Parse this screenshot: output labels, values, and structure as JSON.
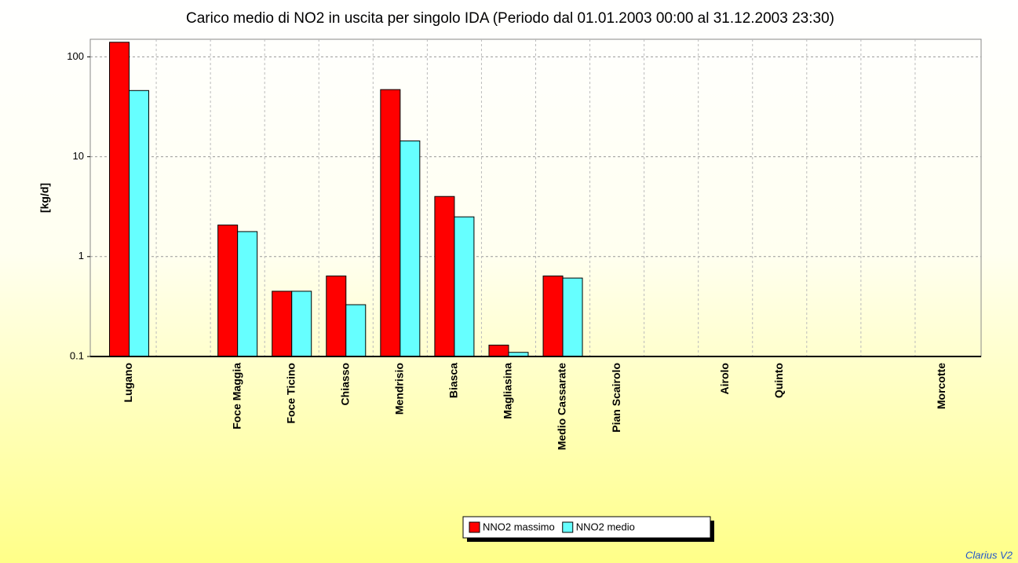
{
  "chart_data": {
    "type": "bar",
    "title": "Carico medio di NO2 in uscita per singolo IDA (Periodo dal 01.01.2003 00:00 al 31.12.2003 23:30)",
    "y_label": "[kg/d]",
    "footer": "Clarius V2",
    "categories": [
      "Lugano",
      null,
      "Foce Maggia",
      "Foce Ticino",
      "Chiasso",
      "Mendrisio",
      "Biasca",
      "Magliasina",
      "Medio Cassarate",
      "Pian Scairolo",
      null,
      "Airolo",
      "Quinto",
      null,
      null,
      "Morcotte"
    ],
    "series": [
      {
        "name": "NNO2 massimo",
        "color": "#ff0000",
        "values": [
          140,
          null,
          2.07,
          0.45,
          0.64,
          47,
          4.0,
          0.13,
          0.64,
          null,
          null,
          null,
          null,
          null,
          null,
          null
        ]
      },
      {
        "name": "NNO2 medio",
        "color": "#66ffff",
        "values": [
          46,
          null,
          1.78,
          0.45,
          0.33,
          14.4,
          2.5,
          0.11,
          0.61,
          null,
          null,
          null,
          null,
          null,
          null,
          null
        ]
      }
    ],
    "ylim": [
      0.1,
      150
    ],
    "yticks": [
      0.1,
      1,
      10,
      100
    ],
    "log_y": true,
    "grid": true,
    "legend": "bottom"
  }
}
